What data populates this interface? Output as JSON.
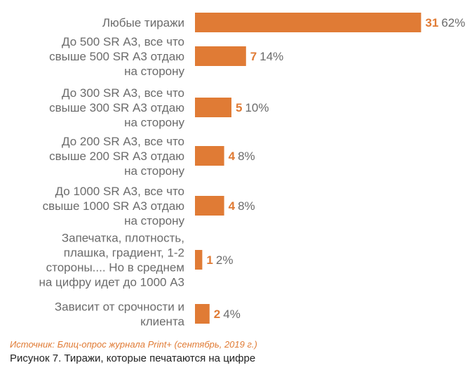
{
  "chart_data": {
    "type": "bar",
    "orientation": "horizontal",
    "categories": [
      [
        "Любые тиражи"
      ],
      [
        "До 500 SR А3, все что",
        "свыше 500 SR А3 отдаю",
        "на сторону"
      ],
      [
        "До 300 SR А3, все что",
        "свыше 300 SR А3 отдаю",
        "на сторону"
      ],
      [
        "До 200 SR А3, все что",
        "свыше 200 SR А3 отдаю",
        "на сторону"
      ],
      [
        "До 1000 SR А3, все что",
        "свыше 1000 SR А3 отдаю",
        "на сторону"
      ],
      [
        "Запечатка, плотность,",
        "плашка, градиент, 1-2",
        "стороны.... Но в среднем",
        "на цифру идет до 1000 А3"
      ],
      [
        "Зависит от срочности и",
        "клиента"
      ]
    ],
    "values": [
      31,
      7,
      5,
      4,
      4,
      1,
      2
    ],
    "value_labels": [
      "31",
      "7",
      "5",
      "4",
      "4",
      "1",
      "2"
    ],
    "percent_labels": [
      "62%",
      "14%",
      "10%",
      "8%",
      "8%",
      "2%",
      "4%"
    ],
    "colors": {
      "bar": "#e07b35",
      "label": "#6b6b6b",
      "count": "#e07b35"
    }
  },
  "source": "Источник: Блиц-опрос журнала Print+ (сентябрь, 2019 г.)",
  "caption": "Рисунок 7. Тиражи, которые печатаются на цифре"
}
